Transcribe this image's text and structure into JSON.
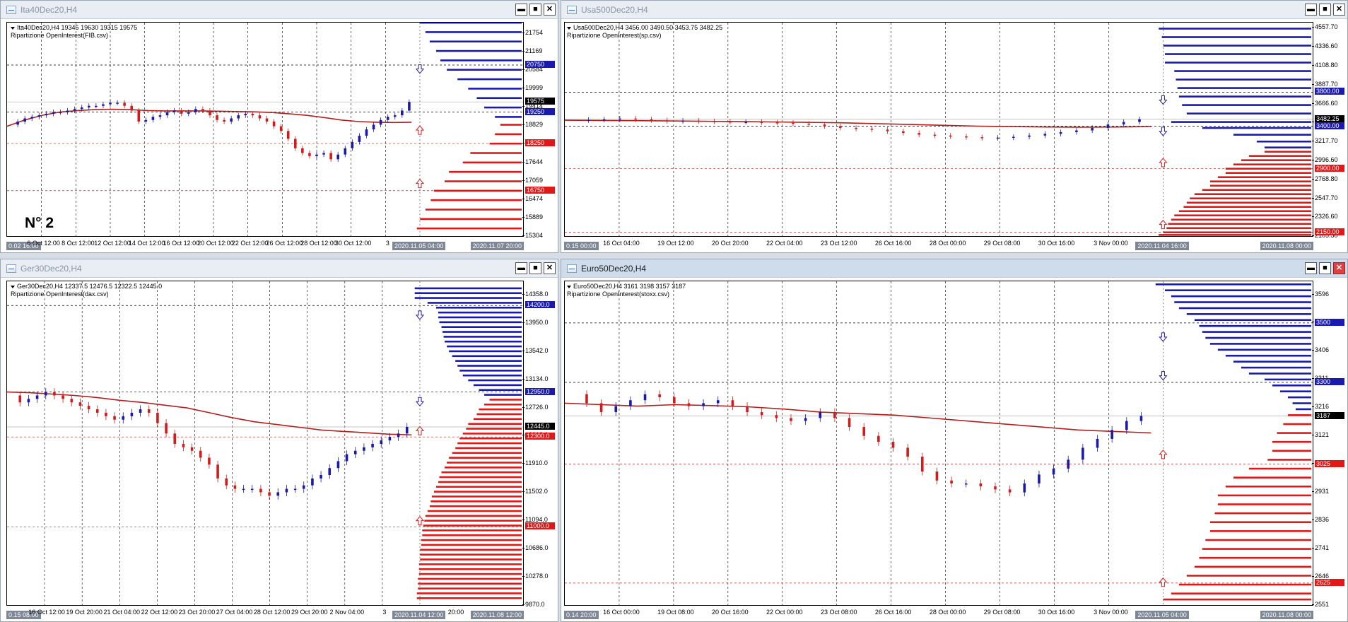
{
  "colors": {
    "bull": "#1a1aa8",
    "bear": "#d21c1c",
    "ma": "#b41e1e",
    "oiBlue": "#1a1ab0",
    "oiRed": "#e01818",
    "hline": "#b0b0b0"
  },
  "note": "N° 2",
  "window_buttons": {
    "minimize": "▬",
    "maximize": "■",
    "close": "✕"
  },
  "charts": [
    {
      "title": "Ita40Dec20,H4",
      "info_line1": "Ita40Dec20,H4  19345 19630 19315 19575",
      "info_line2": "Ripartizione OpenInterest(FIB.csv)",
      "y_ticks": [
        "21754",
        "21169",
        "20584",
        "19999",
        "19414",
        "18829",
        "18244",
        "17644",
        "17059",
        "16474",
        "15889",
        "15304"
      ],
      "y_range": [
        15304,
        22100
      ],
      "levels": [
        {
          "label": "20750",
          "value": 20750,
          "color": "blue"
        },
        {
          "label": "19575",
          "value": 19575,
          "color": "black"
        },
        {
          "label": "19250",
          "value": 19250,
          "color": "blue"
        },
        {
          "label": "18250",
          "value": 18250,
          "color": "red"
        },
        {
          "label": "16750",
          "value": 16750,
          "color": "red"
        }
      ],
      "x_ticks": [
        "6 Oct 12:00",
        "8 Oct 12:00",
        "12 Oct 12:00",
        "14 Oct 12:00",
        "16 Oct 12:00",
        "20 Oct 12:00",
        "22 Oct 12:00",
        "26 Oct 12:00",
        "28 Oct 12:00",
        "30 Oct 12:00",
        "3"
      ],
      "x_start_label": "0.02 16:00",
      "x_box_mid": "2020.11.05 04:00",
      "x_box_end": "2020.11.07 20:00",
      "price_points": [
        18850,
        18950,
        19050,
        19100,
        19150,
        19200,
        19250,
        19250,
        19300,
        19350,
        19400,
        19450,
        19450,
        19500,
        19550,
        19550,
        19450,
        19300,
        18950,
        19000,
        19100,
        19150,
        19250,
        19300,
        19200,
        19250,
        19350,
        19300,
        19150,
        19000,
        18950,
        19050,
        19150,
        19200,
        19150,
        19050,
        18950,
        18800,
        18650,
        18400,
        18100,
        17950,
        17850,
        17900,
        17950,
        17750,
        17900,
        18100,
        18300,
        18500,
        18700,
        18850,
        19000,
        19100,
        19150,
        19300,
        19575
      ],
      "ma_points": [
        18800,
        19000,
        19150,
        19250,
        19300,
        19330,
        19340,
        19330,
        19300,
        19290,
        19290,
        19290,
        19280,
        19270,
        19260,
        19240,
        19200,
        19150,
        19080,
        19000,
        18950,
        18930,
        18920,
        18930
      ],
      "oi_blue_levels": [
        22100,
        21800,
        21500,
        21200,
        20900,
        20600,
        20300,
        20000,
        19700,
        19400,
        19100
      ],
      "oi_blue_lengths": [
        0.95,
        0.9,
        0.86,
        0.8,
        0.76,
        0.7,
        0.6,
        0.5,
        0.42,
        0.35,
        0.25
      ],
      "oi_red_levels": [
        18850,
        18550,
        18250,
        17950,
        17650,
        17350,
        17050,
        16750,
        16450,
        16150,
        15850,
        15550
      ],
      "oi_red_lengths": [
        0.2,
        0.25,
        0.3,
        0.48,
        0.55,
        0.68,
        0.72,
        0.82,
        0.85,
        0.9,
        0.95,
        0.98
      ],
      "arrows": [
        {
          "value": 20600,
          "dir": "down"
        },
        {
          "value": 18700,
          "dir": "up"
        },
        {
          "value": 17000,
          "dir": "up"
        }
      ]
    },
    {
      "title": "Usa500Dec20,H4",
      "info_line1": "Usa500Dec20,H4  3456.00 3490.50 3453.75 3482.25",
      "info_line2": "Ripartizione OpenInterest(sp.csv)",
      "y_ticks": [
        "4557.70",
        "4336.60",
        "4108.80",
        "3887.70",
        "3666.60",
        "3445.50",
        "3217.70",
        "2996.60",
        "2768.80",
        "2547.70",
        "2326.60",
        "2105.50"
      ],
      "y_range": [
        2105.5,
        4620
      ],
      "levels": [
        {
          "label": "3800.00",
          "value": 3800,
          "color": "blue"
        },
        {
          "label": "3482.25",
          "value": 3482.25,
          "color": "black"
        },
        {
          "label": "3400.00",
          "value": 3400,
          "color": "blue"
        },
        {
          "label": "2900.00",
          "value": 2900,
          "color": "red"
        },
        {
          "label": "2150.00",
          "value": 2150,
          "color": "red"
        }
      ],
      "x_ticks": [
        "16 Oct 04:00",
        "19 Oct 12:00",
        "20 Oct 20:00",
        "22 Oct 04:00",
        "23 Oct 12:00",
        "26 Oct 16:00",
        "28 Oct 00:00",
        "29 Oct 08:00",
        "30 Oct 16:00",
        "3 Nov 00:00"
      ],
      "x_start_label": "0.15 00:00",
      "x_box_mid": "2020.11.04 16:00",
      "x_box_end": "2020.11.08 00:00",
      "price_points": [
        3470,
        3475,
        3480,
        3490,
        3480,
        3470,
        3460,
        3465,
        3460,
        3455,
        3450,
        3450,
        3445,
        3440,
        3430,
        3420,
        3400,
        3380,
        3370,
        3360,
        3340,
        3320,
        3300,
        3290,
        3280,
        3270,
        3260,
        3265,
        3275,
        3290,
        3310,
        3330,
        3350,
        3380,
        3420,
        3450,
        3482
      ],
      "ma_points": [
        3470,
        3468,
        3465,
        3462,
        3458,
        3455,
        3450,
        3445,
        3440,
        3430,
        3420,
        3410,
        3400,
        3395,
        3390,
        3388,
        3390,
        3395
      ],
      "oi_blue_levels": [
        4550,
        4450,
        4350,
        4250,
        4150,
        4050,
        3950,
        3850,
        3750,
        3650,
        3550,
        3450,
        3380,
        3300,
        3220,
        3150
      ],
      "oi_blue_lengths": [
        0.98,
        0.96,
        0.95,
        0.94,
        0.94,
        0.88,
        0.87,
        0.86,
        0.85,
        0.83,
        0.8,
        0.9,
        0.7,
        0.5,
        0.35,
        0.3
      ],
      "oi_red_levels": [
        3100,
        3050,
        3000,
        2950,
        2900,
        2850,
        2800,
        2750,
        2700,
        2650,
        2600,
        2550,
        2500,
        2450,
        2400,
        2350,
        2300,
        2250,
        2200,
        2150,
        2120
      ],
      "oi_red_lengths": [
        0.3,
        0.4,
        0.45,
        0.5,
        0.55,
        0.55,
        0.6,
        0.65,
        0.65,
        0.7,
        0.75,
        0.78,
        0.8,
        0.82,
        0.85,
        0.88,
        0.9,
        0.92,
        0.93,
        0.95,
        0.98
      ],
      "arrows": [
        {
          "value": 3700,
          "dir": "down"
        },
        {
          "value": 3330,
          "dir": "down"
        },
        {
          "value": 2980,
          "dir": "up"
        },
        {
          "value": 2250,
          "dir": "up"
        }
      ]
    },
    {
      "title": "Ger30Dec20,H4",
      "info_line1": "Ger30Dec20,H4  12337.5 12476.5 12322.5 12445.0",
      "info_line2": "Ripartizione OpenInterest(dax.csv)",
      "y_ticks": [
        "14358.0",
        "13950.0",
        "13542.0",
        "13134.0",
        "12726.0",
        "12318.0",
        "11910.0",
        "11502.0",
        "11094.0",
        "10686.0",
        "10278.0",
        "9870.0"
      ],
      "y_range": [
        9870,
        14550
      ],
      "levels": [
        {
          "label": "14200.0",
          "value": 14200,
          "color": "blue"
        },
        {
          "label": "12950.0",
          "value": 12950,
          "color": "blue"
        },
        {
          "label": "12445.0",
          "value": 12445,
          "color": "black"
        },
        {
          "label": "12300.0",
          "value": 12300,
          "color": "red"
        },
        {
          "label": "11000.0",
          "value": 11000,
          "color": "red"
        }
      ],
      "x_ticks": [
        "16 Oct 12:00",
        "19 Oct 20:00",
        "21 Oct 04:00",
        "22 Oct 12:00",
        "23 Oct 20:00",
        "27 Oct 04:00",
        "28 Oct 12:00",
        "29 Oct 20:00",
        "2 Nov 04:00",
        "3"
      ],
      "x_start_label": "0.15 08:00",
      "x_box_mid": "2020.11.04 12:00",
      "x_box_mid2": "20:00",
      "x_box_end": "2020.11.08 12:00",
      "price_points": [
        12900,
        12800,
        12850,
        12900,
        12950,
        12900,
        12850,
        12800,
        12750,
        12700,
        12650,
        12600,
        12550,
        12600,
        12650,
        12700,
        12650,
        12500,
        12350,
        12200,
        12150,
        12100,
        12000,
        11900,
        11700,
        11600,
        11550,
        11550,
        11550,
        11500,
        11450,
        11500,
        11550,
        11550,
        11600,
        11700,
        11750,
        11850,
        11950,
        12050,
        12100,
        12150,
        12200,
        12250,
        12300,
        12350,
        12445
      ],
      "ma_points": [
        12950,
        12940,
        12920,
        12900,
        12870,
        12830,
        12800,
        12760,
        12720,
        12650,
        12580,
        12520,
        12480,
        12440,
        12400,
        12380,
        12360,
        12340,
        12330
      ],
      "oi_blue_levels": [
        14450,
        14380,
        14310,
        14240,
        14170,
        14100,
        14030,
        13960,
        13890,
        13820,
        13750,
        13680,
        13610,
        13540,
        13470,
        13400,
        13330,
        13260,
        13190,
        13120,
        13050,
        12980,
        12910
      ],
      "oi_blue_lengths": [
        1,
        1,
        1,
        0.88,
        0.8,
        0.78,
        0.78,
        0.77,
        0.75,
        0.74,
        0.73,
        0.72,
        0.7,
        0.68,
        0.65,
        0.62,
        0.6,
        0.58,
        0.55,
        0.5,
        0.45,
        0.4,
        0.35
      ],
      "oi_red_levels": [
        12840,
        12770,
        12700,
        12630,
        12560,
        12490,
        12420,
        12350,
        12280,
        12210,
        12140,
        12070,
        12000,
        11930,
        11860,
        11790,
        11720,
        11650,
        11580,
        11510,
        11440,
        11370,
        11300,
        11230,
        11160,
        11090,
        11020,
        10950,
        10880,
        10810,
        10740,
        10670,
        10600,
        10530,
        10460,
        10390,
        10320,
        10250,
        10180,
        10110,
        10040,
        9970
      ],
      "oi_red_lengths": [
        0.3,
        0.35,
        0.4,
        0.42,
        0.45,
        0.5,
        0.52,
        0.55,
        0.58,
        0.6,
        0.62,
        0.65,
        0.68,
        0.7,
        0.72,
        0.75,
        0.77,
        0.78,
        0.8,
        0.82,
        0.84,
        0.85,
        0.86,
        0.88,
        0.9,
        0.91,
        0.92,
        0.93,
        0.93,
        0.94,
        0.94,
        0.95,
        0.95,
        0.95,
        0.96,
        0.96,
        0.96,
        0.97,
        0.97,
        0.97,
        0.98,
        0.98
      ],
      "arrows": [
        {
          "value": 14050,
          "dir": "down"
        },
        {
          "value": 12800,
          "dir": "down"
        },
        {
          "value": 12400,
          "dir": "up"
        },
        {
          "value": 11100,
          "dir": "up"
        }
      ]
    },
    {
      "title": "Euro50Dec20,H4",
      "info_line1": "Euro50Dec20,H4  3161 3198 3157 3187",
      "info_line2": "Ripartizione OpenInterest(stoxx.csv)",
      "y_ticks": [
        "3596",
        "3501",
        "3406",
        "3311",
        "3216",
        "3121",
        "3026",
        "2931",
        "2836",
        "2741",
        "2646",
        "2551"
      ],
      "y_range": [
        2551,
        3640
      ],
      "levels": [
        {
          "label": "3500",
          "value": 3500,
          "color": "blue"
        },
        {
          "label": "3300",
          "value": 3300,
          "color": "blue"
        },
        {
          "label": "3187",
          "value": 3187,
          "color": "black"
        },
        {
          "label": "3025",
          "value": 3025,
          "color": "red"
        },
        {
          "label": "2625",
          "value": 2625,
          "color": "red"
        }
      ],
      "x_ticks": [
        "16 Oct 00:00",
        "19 Oct 08:00",
        "20 Oct 16:00",
        "22 Oct 00:00",
        "23 Oct 08:00",
        "26 Oct 16:00",
        "28 Oct 00:00",
        "29 Oct 08:00",
        "30 Oct 16:00",
        "3 Nov 00:00"
      ],
      "x_start_label": "0.14 20:00",
      "x_box_mid": "2020.11.05 04:00",
      "x_box_end": "2020.11.08 00:00",
      "price_points": [
        3260,
        3230,
        3200,
        3220,
        3240,
        3260,
        3250,
        3230,
        3220,
        3230,
        3240,
        3220,
        3200,
        3190,
        3180,
        3170,
        3180,
        3200,
        3180,
        3150,
        3120,
        3100,
        3080,
        3050,
        3000,
        2970,
        2960,
        2960,
        2950,
        2940,
        2930,
        2960,
        2990,
        3010,
        3040,
        3080,
        3110,
        3140,
        3170,
        3187
      ],
      "ma_points": [
        3230,
        3225,
        3220,
        3225,
        3222,
        3218,
        3210,
        3200,
        3195,
        3190,
        3180,
        3170,
        3160,
        3150,
        3140,
        3135,
        3130
      ],
      "oi_blue_levels": [
        3630,
        3610,
        3590,
        3570,
        3550,
        3530,
        3510,
        3490,
        3470,
        3450,
        3430,
        3410,
        3390,
        3370,
        3350,
        3330,
        3310,
        3290,
        3270,
        3250,
        3230,
        3210
      ],
      "oi_blue_lengths": [
        1,
        0.94,
        0.9,
        0.88,
        0.85,
        0.8,
        0.75,
        0.72,
        0.7,
        0.68,
        0.65,
        0.6,
        0.55,
        0.5,
        0.45,
        0.4,
        0.3,
        0.25,
        0.2,
        0.15,
        0.12,
        0.1
      ],
      "oi_red_levels": [
        3190,
        3160,
        3130,
        3100,
        3070,
        3040,
        3010,
        2980,
        2950,
        2920,
        2890,
        2860,
        2830,
        2800,
        2770,
        2740,
        2710,
        2680,
        2650,
        2620,
        2590,
        2570
      ],
      "oi_red_lengths": [
        0.15,
        0.18,
        0.22,
        0.25,
        0.25,
        0.28,
        0.4,
        0.5,
        0.55,
        0.6,
        0.6,
        0.62,
        0.65,
        0.65,
        0.68,
        0.7,
        0.72,
        0.75,
        0.8,
        0.85,
        0.9,
        0.95
      ],
      "arrows": [
        {
          "value": 3450,
          "dir": "down"
        },
        {
          "value": 3320,
          "dir": "down"
        },
        {
          "value": 3060,
          "dir": "up"
        },
        {
          "value": 2630,
          "dir": "up"
        }
      ]
    }
  ]
}
